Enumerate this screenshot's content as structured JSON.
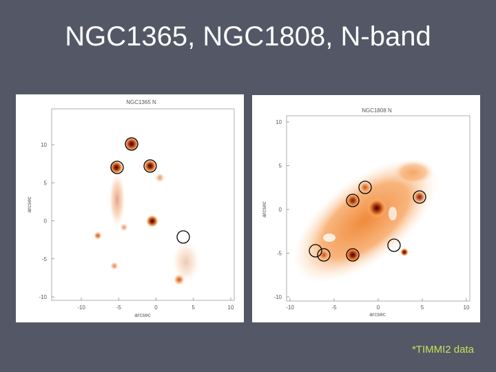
{
  "title": "NGC1365, NGC1808, N-band",
  "panels": [
    {
      "title": "NGC1365  N",
      "x_label": "arcsec",
      "y_label": "arcsec",
      "x_ticks": [
        "-10",
        "-5",
        "0",
        "5",
        "10"
      ],
      "y_ticks": [
        "10",
        "5",
        "0",
        "-5",
        "-10"
      ]
    },
    {
      "title": "NGC1808  N",
      "x_label": "arcsec",
      "y_label": "arcsec",
      "x_ticks": [
        "-10",
        "-5",
        "0",
        "5",
        "10"
      ],
      "y_ticks": [
        "10",
        "5",
        "0",
        "-5",
        "-10"
      ]
    }
  ],
  "footnote": "*TIMMI2 data"
}
